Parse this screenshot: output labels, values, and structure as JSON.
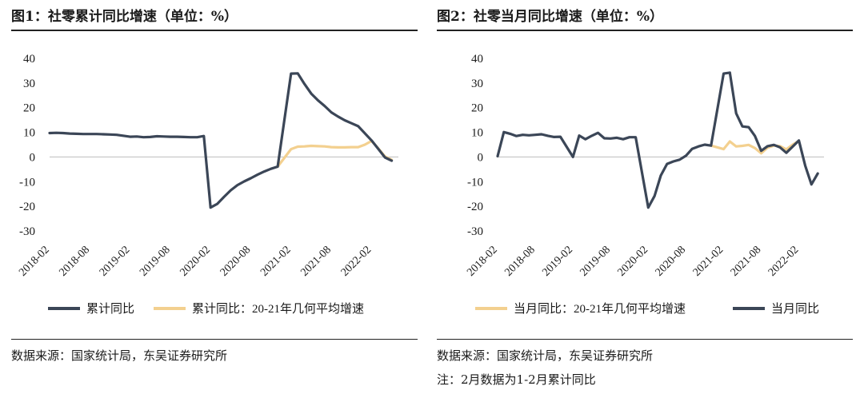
{
  "panels": [
    {
      "title": "图1：社零累计同比增速（单位：%）",
      "source": "数据来源：国家统计局，东吴证券研究所",
      "note": ""
    },
    {
      "title": "图2：社零当月同比增速（单位：%）",
      "source": "数据来源：国家统计局，东吴证券研究所",
      "note": "注：2月数据为1-2月累计同比"
    }
  ],
  "chart_data": [
    {
      "type": "line",
      "yticks": [
        40,
        30,
        20,
        10,
        0,
        -10,
        -20,
        -30
      ],
      "ylim": [
        -30,
        40
      ],
      "xlim": [
        "2018-02",
        "2022-06"
      ],
      "xticks": [
        "2018-02",
        "2018-08",
        "2019-02",
        "2019-08",
        "2020-02",
        "2020-08",
        "2021-02",
        "2021-08",
        "2022-02"
      ],
      "legend_position": "bottom",
      "series": [
        {
          "name": "累计同比",
          "color": "#3b4657",
          "points": [
            [
              "2018-02",
              9.7
            ],
            [
              "2018-03",
              9.8
            ],
            [
              "2018-04",
              9.7
            ],
            [
              "2018-05",
              9.5
            ],
            [
              "2018-06",
              9.4
            ],
            [
              "2018-07",
              9.3
            ],
            [
              "2018-08",
              9.3
            ],
            [
              "2018-09",
              9.3
            ],
            [
              "2018-10",
              9.2
            ],
            [
              "2018-11",
              9.1
            ],
            [
              "2018-12",
              9.0
            ],
            [
              "2019-02",
              8.2
            ],
            [
              "2019-03",
              8.3
            ],
            [
              "2019-04",
              8.0
            ],
            [
              "2019-05",
              8.1
            ],
            [
              "2019-06",
              8.4
            ],
            [
              "2019-07",
              8.3
            ],
            [
              "2019-08",
              8.2
            ],
            [
              "2019-09",
              8.2
            ],
            [
              "2019-10",
              8.1
            ],
            [
              "2019-11",
              8.0
            ],
            [
              "2019-12",
              8.0
            ],
            [
              "2020-01",
              8.5
            ],
            [
              "2020-02",
              -20.5
            ],
            [
              "2020-03",
              -19.0
            ],
            [
              "2020-04",
              -16.2
            ],
            [
              "2020-05",
              -13.5
            ],
            [
              "2020-06",
              -11.4
            ],
            [
              "2020-07",
              -9.9
            ],
            [
              "2020-08",
              -8.6
            ],
            [
              "2020-09",
              -7.2
            ],
            [
              "2020-10",
              -5.9
            ],
            [
              "2020-11",
              -4.8
            ],
            [
              "2020-12",
              -3.9
            ],
            [
              "2021-02",
              33.8
            ],
            [
              "2021-03",
              33.9
            ],
            [
              "2021-04",
              29.6
            ],
            [
              "2021-05",
              25.7
            ],
            [
              "2021-06",
              23.0
            ],
            [
              "2021-07",
              20.7
            ],
            [
              "2021-08",
              18.1
            ],
            [
              "2021-09",
              16.4
            ],
            [
              "2021-10",
              14.9
            ],
            [
              "2021-11",
              13.7
            ],
            [
              "2021-12",
              12.5
            ],
            [
              "2022-02",
              6.7
            ],
            [
              "2022-03",
              3.3
            ],
            [
              "2022-04",
              -0.2
            ],
            [
              "2022-05",
              -1.5
            ]
          ]
        },
        {
          "name": "累计同比：20-21年几何平均增速",
          "color": "#f3d08f",
          "points": [
            [
              "2020-12",
              -3.9
            ],
            [
              "2021-02",
              3.2
            ],
            [
              "2021-03",
              4.2
            ],
            [
              "2021-04",
              4.3
            ],
            [
              "2021-05",
              4.5
            ],
            [
              "2021-06",
              4.4
            ],
            [
              "2021-07",
              4.3
            ],
            [
              "2021-08",
              4.0
            ],
            [
              "2021-09",
              3.9
            ],
            [
              "2021-10",
              3.9
            ],
            [
              "2021-11",
              4.0
            ],
            [
              "2021-12",
              4.0
            ],
            [
              "2022-01",
              5.0
            ],
            [
              "2022-02",
              6.5
            ],
            [
              "2022-03",
              3.5
            ],
            [
              "2022-04",
              0.2
            ],
            [
              "2022-05",
              -1.2
            ]
          ]
        }
      ],
      "legend": [
        "累计同比",
        "累计同比：20-21年几何平均增速"
      ]
    },
    {
      "type": "line",
      "yticks": [
        40,
        30,
        20,
        10,
        0,
        -10,
        -20,
        -30
      ],
      "ylim": [
        -30,
        40
      ],
      "xlim": [
        "2018-02",
        "2022-06"
      ],
      "xticks": [
        "2018-02",
        "2018-08",
        "2019-02",
        "2019-08",
        "2020-02",
        "2020-08",
        "2021-02",
        "2021-08",
        "2022-02"
      ],
      "legend_position": "bottom",
      "series": [
        {
          "name": "当月同比",
          "color": "#3b4657",
          "points": [
            [
              "2018-02",
              0.3
            ],
            [
              "2018-03",
              10.1
            ],
            [
              "2018-04",
              9.4
            ],
            [
              "2018-05",
              8.5
            ],
            [
              "2018-06",
              9.0
            ],
            [
              "2018-07",
              8.8
            ],
            [
              "2018-08",
              9.0
            ],
            [
              "2018-09",
              9.2
            ],
            [
              "2018-10",
              8.6
            ],
            [
              "2018-11",
              8.1
            ],
            [
              "2018-12",
              8.2
            ],
            [
              "2019-02",
              0.0
            ],
            [
              "2019-03",
              8.7
            ],
            [
              "2019-04",
              7.2
            ],
            [
              "2019-05",
              8.6
            ],
            [
              "2019-06",
              9.8
            ],
            [
              "2019-07",
              7.6
            ],
            [
              "2019-08",
              7.5
            ],
            [
              "2019-09",
              7.8
            ],
            [
              "2019-10",
              7.2
            ],
            [
              "2019-11",
              8.0
            ],
            [
              "2019-12",
              8.0
            ],
            [
              "2020-02",
              -20.5
            ],
            [
              "2020-03",
              -15.8
            ],
            [
              "2020-04",
              -7.5
            ],
            [
              "2020-05",
              -2.8
            ],
            [
              "2020-06",
              -1.8
            ],
            [
              "2020-07",
              -1.1
            ],
            [
              "2020-08",
              0.5
            ],
            [
              "2020-09",
              3.3
            ],
            [
              "2020-10",
              4.3
            ],
            [
              "2020-11",
              5.0
            ],
            [
              "2020-12",
              4.6
            ],
            [
              "2021-02",
              33.8
            ],
            [
              "2021-03",
              34.2
            ],
            [
              "2021-04",
              17.7
            ],
            [
              "2021-05",
              12.4
            ],
            [
              "2021-06",
              12.1
            ],
            [
              "2021-07",
              8.5
            ],
            [
              "2021-08",
              2.5
            ],
            [
              "2021-09",
              4.4
            ],
            [
              "2021-10",
              4.9
            ],
            [
              "2021-11",
              3.9
            ],
            [
              "2021-12",
              1.7
            ],
            [
              "2022-02",
              6.7
            ],
            [
              "2022-03",
              -3.5
            ],
            [
              "2022-04",
              -11.1
            ],
            [
              "2022-05",
              -6.7
            ]
          ]
        },
        {
          "name": "当月同比：20-21年几何平均增速",
          "color": "#f3d08f",
          "points": [
            [
              "2020-12",
              4.6
            ],
            [
              "2021-02",
              3.2
            ],
            [
              "2021-03",
              6.3
            ],
            [
              "2021-04",
              4.3
            ],
            [
              "2021-05",
              4.5
            ],
            [
              "2021-06",
              4.9
            ],
            [
              "2021-07",
              3.6
            ],
            [
              "2021-08",
              1.5
            ],
            [
              "2021-09",
              3.8
            ],
            [
              "2021-10",
              4.6
            ],
            [
              "2021-11",
              4.4
            ],
            [
              "2021-12",
              3.1
            ],
            [
              "2022-01",
              5.0
            ],
            [
              "2022-02",
              6.5
            ]
          ]
        }
      ],
      "legend": [
        "当月同比：20-21年几何平均增速",
        "当月同比"
      ]
    }
  ]
}
